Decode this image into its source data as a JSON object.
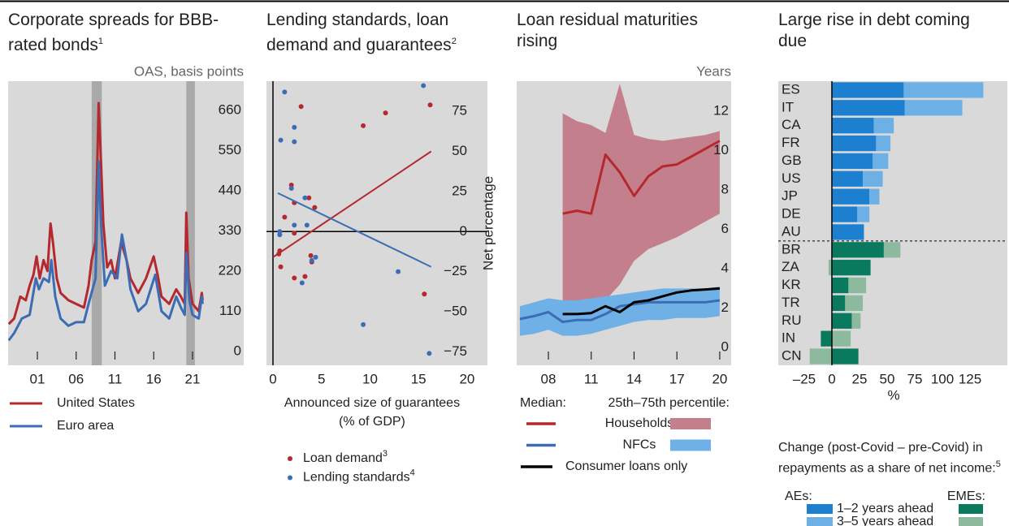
{
  "chart_data": [
    {
      "type": "line",
      "title": "Corporate spreads for BBB-rated bonds",
      "title_note": "1",
      "unit_label": "OAS, basis points",
      "xlim": [
        1997.23,
        2027.6
      ],
      "ylim": [
        -38,
        740
      ],
      "xticks": [
        {
          "value": 2001,
          "label": "01"
        },
        {
          "value": 2006,
          "label": "06"
        },
        {
          "value": 2011,
          "label": "11"
        },
        {
          "value": 2016,
          "label": "16"
        },
        {
          "value": 2021,
          "label": "21"
        }
      ],
      "yticks": [
        0,
        110,
        220,
        330,
        440,
        550,
        660
      ],
      "shaded": [
        [
          2008.0,
          2009.3
        ],
        [
          2020.2,
          2021.3
        ]
      ],
      "series": [
        {
          "name": "United States",
          "color": "#b5292e",
          "x": [
            1997.3,
            1998,
            1998.8,
            1999.5,
            2000,
            2000.5,
            2000.9,
            2001.3,
            2001.8,
            2002.3,
            2002.7,
            2003,
            2003.5,
            2004,
            2005,
            2006,
            2007,
            2007.6,
            2008,
            2008.5,
            2008.9,
            2009.1,
            2009.5,
            2010,
            2010.5,
            2011,
            2011.8,
            2012.5,
            2013,
            2014,
            2015,
            2016,
            2016.5,
            2017,
            2018,
            2018.9,
            2019.5,
            2020,
            2020.2,
            2020.5,
            2021,
            2021.8,
            2022.2,
            2022.3
          ],
          "values": [
            75,
            90,
            150,
            140,
            180,
            210,
            260,
            200,
            250,
            220,
            350,
            300,
            200,
            160,
            140,
            130,
            120,
            180,
            250,
            300,
            680,
            580,
            350,
            230,
            250,
            200,
            300,
            250,
            200,
            160,
            200,
            260,
            210,
            150,
            130,
            170,
            150,
            130,
            380,
            200,
            130,
            110,
            160,
            140
          ]
        },
        {
          "name": "Euro area",
          "color": "#3c6db4",
          "x": [
            1997.3,
            1998,
            1999,
            2000,
            2000.8,
            2001.2,
            2001.8,
            2002.5,
            2002.8,
            2003.3,
            2004,
            2005,
            2006,
            2007,
            2007.6,
            2008.5,
            2008.9,
            2009.2,
            2009.7,
            2010.5,
            2011.3,
            2011.9,
            2012.5,
            2013,
            2014,
            2015,
            2016.2,
            2017,
            2018,
            2018.9,
            2019.5,
            2020,
            2020.2,
            2020.6,
            2021,
            2021.8,
            2022.2,
            2022.3
          ],
          "values": [
            30,
            50,
            90,
            100,
            200,
            170,
            200,
            190,
            250,
            150,
            90,
            70,
            80,
            80,
            130,
            200,
            520,
            350,
            180,
            220,
            200,
            320,
            250,
            170,
            110,
            130,
            210,
            110,
            90,
            150,
            120,
            100,
            270,
            140,
            100,
            90,
            150,
            130
          ]
        }
      ]
    },
    {
      "type": "scatter",
      "title": "Lending standards, loan demand and guarantees",
      "title_note": "2",
      "xlabel": "Announced size of guarantees (% of GDP)",
      "ylabel": "Net percentage",
      "xlim": [
        -0.67,
        22.1
      ],
      "ylim": [
        -83.4,
        93.8
      ],
      "xticks": [
        0,
        5,
        10,
        15,
        20
      ],
      "yticks": [
        {
          "value": -75,
          "label": "−75"
        },
        {
          "value": -50,
          "label": "−50"
        },
        {
          "value": -25,
          "label": "−25"
        },
        0,
        25,
        50,
        75
      ],
      "series": [
        {
          "name": "Loan demand",
          "note": "3",
          "color": "#b5292e",
          "x": [
            2.9,
            11.6,
            16.2,
            9.3,
            1.9,
            3.7,
            2.2,
            4.3,
            1.2,
            2.2,
            0.7,
            0.6,
            3.9,
            0.8,
            4.0,
            3.3,
            2.2,
            15.6
          ],
          "values": [
            78,
            74,
            79,
            66,
            29,
            21,
            18,
            15,
            9,
            -1,
            -12,
            -14,
            -15,
            -22,
            -19,
            -28,
            -29,
            -39
          ],
          "trend": {
            "x": [
              0,
              16.3
            ],
            "y": [
              -16,
              50
            ]
          }
        },
        {
          "name": "Lending standards",
          "note": "4",
          "color": "#3c6db4",
          "x": [
            1.2,
            15.5,
            2.2,
            0.8,
            2.2,
            1.9,
            3.3,
            3.5,
            2.2,
            0.7,
            0.7,
            4.4,
            4.0,
            12.9,
            3.0,
            9.3,
            16.1
          ],
          "values": [
            87,
            91,
            65,
            57,
            56,
            27,
            21,
            4,
            4,
            0,
            -2,
            -16,
            -18,
            -25,
            -32,
            -58,
            -76
          ],
          "trend": {
            "x": [
              0.5,
              16.3
            ],
            "y": [
              24,
              -22
            ]
          }
        }
      ]
    },
    {
      "type": "line",
      "title": "Loan residual maturities rising",
      "unit_label": "Years",
      "legend_headers": [
        "Median:",
        "25th–75th percentile:"
      ],
      "xlim": [
        2005.78,
        2020.8
      ],
      "ylim": [
        -0.9,
        13.53
      ],
      "xticks": [
        {
          "value": 2008,
          "label": "08"
        },
        {
          "value": 2011,
          "label": "11"
        },
        {
          "value": 2014,
          "label": "14"
        },
        {
          "value": 2017,
          "label": "17"
        },
        {
          "value": 2020,
          "label": "20"
        }
      ],
      "yticks": [
        0,
        2,
        4,
        6,
        8,
        10,
        12
      ],
      "series": [
        {
          "name": "Households",
          "color": "#b5292e",
          "band_color": "#c47f8c",
          "x": [
            2009,
            2010,
            2011,
            2012,
            2013,
            2014,
            2015,
            2016,
            2017,
            2018,
            2019,
            2020
          ],
          "values": [
            6.8,
            6.95,
            6.8,
            9.8,
            8.9,
            7.7,
            8.7,
            9.2,
            9.3,
            9.7,
            10.1,
            10.5
          ],
          "lower": [
            2.1,
            2.2,
            2.3,
            2.4,
            3.2,
            4.4,
            5.0,
            5.3,
            5.6,
            6.0,
            6.4,
            6.8
          ],
          "upper": [
            11.9,
            11.5,
            11.3,
            10.9,
            13.4,
            10.8,
            10.6,
            10.5,
            10.6,
            10.7,
            10.8,
            11.0
          ]
        },
        {
          "name": "NFCs",
          "color": "#3c6db4",
          "band_color": "#6fb1e6",
          "x": [
            2006,
            2007,
            2008,
            2009,
            2010,
            2011,
            2012,
            2013,
            2014,
            2015,
            2016,
            2017,
            2018,
            2019,
            2020
          ],
          "values": [
            1.45,
            1.6,
            1.8,
            1.3,
            1.4,
            1.4,
            1.7,
            2.1,
            2.2,
            2.3,
            2.3,
            2.3,
            2.3,
            2.3,
            2.4
          ],
          "lower": [
            0.6,
            0.7,
            0.9,
            0.6,
            0.6,
            0.7,
            0.9,
            1.1,
            1.3,
            1.4,
            1.4,
            1.5,
            1.5,
            1.5,
            1.6
          ],
          "upper": [
            2.1,
            2.3,
            2.5,
            2.4,
            2.4,
            2.5,
            2.6,
            2.7,
            2.8,
            2.9,
            3.0,
            3.0,
            3.0,
            3.0,
            3.1
          ]
        },
        {
          "name": "Consumer loans only",
          "color": "#000000",
          "x": [
            2009,
            2010,
            2011,
            2012,
            2013,
            2014,
            2015,
            2016,
            2017,
            2018,
            2019,
            2020
          ],
          "values": [
            1.7,
            1.7,
            1.75,
            2.1,
            1.8,
            2.3,
            2.4,
            2.6,
            2.8,
            2.9,
            2.95,
            3.0
          ]
        }
      ]
    },
    {
      "type": "bar",
      "orientation": "horizontal",
      "stacked": true,
      "title": "Large rise in debt coming due",
      "xlabel": "%",
      "note": "Change (post-Covid – pre-Covid) in repayments as a share of net income:",
      "note_ref": "5",
      "xlim": [
        -48.5,
        158.8
      ],
      "xticks": [
        {
          "value": -25,
          "label": "–25"
        },
        0,
        25,
        50,
        75,
        100,
        125
      ],
      "series_names": [
        "1–2 years ahead",
        "3–5 years ahead"
      ],
      "groups": [
        {
          "name": "AEs:",
          "categories": [
            "ES",
            "IT",
            "CA",
            "FR",
            "GB",
            "US",
            "JP",
            "DE",
            "AU"
          ],
          "series": [
            {
              "color": "#1c7fcf",
              "values": [
                65,
                66,
                38,
                40,
                37,
                28,
                34,
                23,
                29
              ]
            },
            {
              "color": "#6cb0e6",
              "values": [
                72,
                52,
                18,
                13,
                14,
                18,
                9,
                11,
                0
              ]
            }
          ]
        },
        {
          "name": "EMEs:",
          "categories": [
            "BR",
            "ZA",
            "KR",
            "TR",
            "RU",
            "IN",
            "CN"
          ],
          "series": [
            {
              "color": "#0a7a5e",
              "values": [
                47,
                35,
                15,
                12,
                18,
                -10,
                24
              ]
            },
            {
              "color": "#8db99e",
              "values": [
                15,
                -3,
                16,
                16,
                8,
                17,
                -20
              ]
            }
          ]
        }
      ]
    }
  ]
}
